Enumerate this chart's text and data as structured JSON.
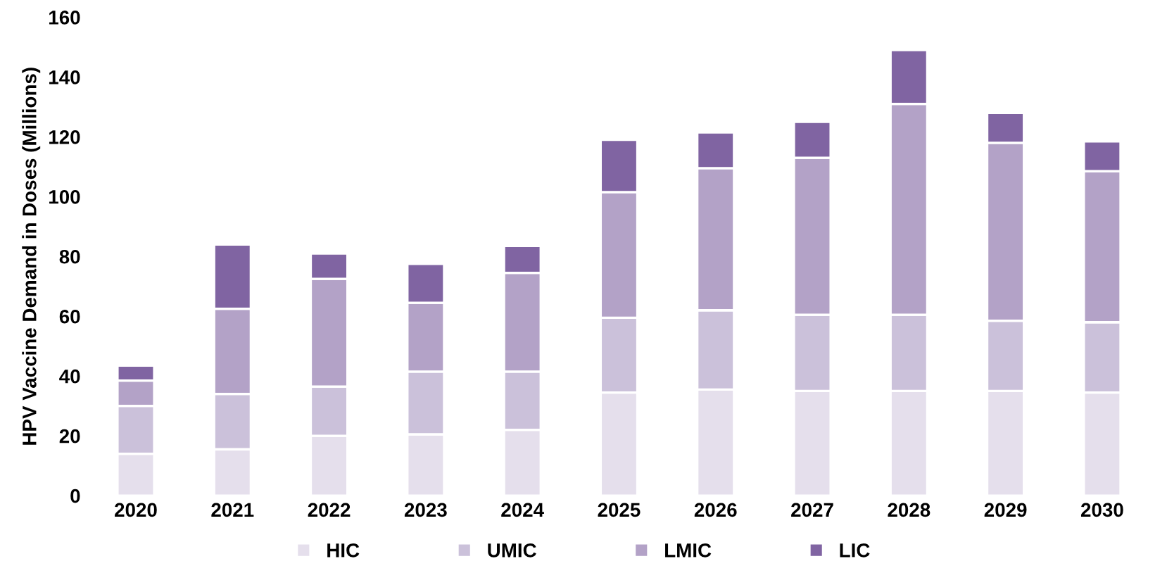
{
  "chart_data": {
    "type": "bar",
    "stacked": true,
    "ylabel": "HPV Vaccine Demand in Doses (Millions)",
    "categories": [
      "2020",
      "2021",
      "2022",
      "2023",
      "2024",
      "2025",
      "2026",
      "2027",
      "2028",
      "2029",
      "2030"
    ],
    "series": [
      {
        "name": "HIC",
        "color": "#e5dfec",
        "values": [
          14,
          15.5,
          20,
          20.5,
          22,
          34.5,
          35.5,
          35,
          35,
          35,
          34.5
        ]
      },
      {
        "name": "UMIC",
        "color": "#cbc1da",
        "values": [
          16,
          18.5,
          16.5,
          21,
          19.5,
          25,
          26.5,
          25.5,
          25.5,
          23.5,
          23.5
        ]
      },
      {
        "name": "LMIC",
        "color": "#b3a2c7",
        "values": [
          8.5,
          28.5,
          36,
          23,
          33,
          42,
          47.5,
          52.5,
          70.5,
          59.5,
          50.5
        ]
      },
      {
        "name": "LIC",
        "color": "#8064a2",
        "values": [
          5,
          21.5,
          8.5,
          13,
          9,
          17.5,
          12,
          12,
          18,
          10,
          10
        ]
      }
    ],
    "ylim": [
      0,
      160
    ],
    "yticks": [
      0,
      20,
      40,
      60,
      80,
      100,
      120,
      140,
      160
    ],
    "grid": false,
    "legend": "bottom"
  }
}
